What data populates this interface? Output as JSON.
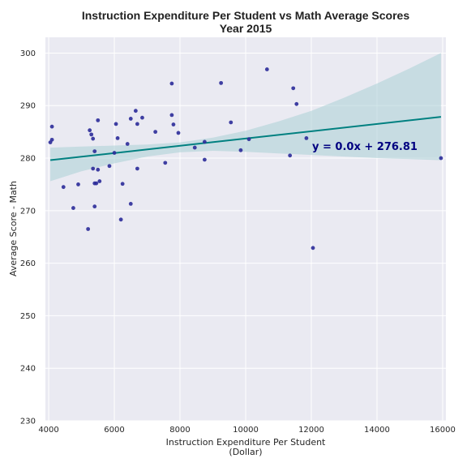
{
  "chart_data": {
    "type": "scatter",
    "title_line1": "Instruction Expenditure Per Student vs Math Average Scores",
    "title_line2": "Year 2015",
    "xlabel_line1": "Instruction Expenditure Per Student",
    "xlabel_line2": "(Dollar)",
    "ylabel": "Average Score - Math",
    "xlim": [
      3900,
      16100
    ],
    "ylim": [
      230,
      303
    ],
    "xticks": [
      "4000",
      "6000",
      "8000",
      "10000",
      "12000",
      "14000",
      "16000"
    ],
    "yticks": [
      "230",
      "240",
      "250",
      "260",
      "270",
      "280",
      "290",
      "300"
    ],
    "grid": true,
    "background": "#eaeaf2",
    "point_color": "#2b2b99",
    "line_color": "#008080",
    "band_color": "#a9cfd6",
    "equation_color": "#000080",
    "equation": "y = 0.0x + 276.81",
    "regression": {
      "slope": 0.000692,
      "intercept": 276.81
    },
    "confidence_band": {
      "x": [
        4050,
        5000,
        6000,
        7000,
        8000,
        9000,
        10000,
        11000,
        12000,
        13000,
        14000,
        15000,
        15950
      ],
      "lower": [
        275.6,
        277.5,
        279.0,
        280.3,
        281.1,
        281.4,
        281.2,
        280.9,
        280.6,
        280.3,
        280.0,
        279.8,
        279.6
      ],
      "upper": [
        282.0,
        282.2,
        282.4,
        282.6,
        283.0,
        283.9,
        285.2,
        287.0,
        289.0,
        291.5,
        294.2,
        297.1,
        300.0
      ]
    },
    "points": [
      {
        "x": 4050,
        "y": 283.0
      },
      {
        "x": 4100,
        "y": 286.0
      },
      {
        "x": 4100,
        "y": 283.5
      },
      {
        "x": 4450,
        "y": 274.5
      },
      {
        "x": 4750,
        "y": 270.5
      },
      {
        "x": 4900,
        "y": 275.0
      },
      {
        "x": 5200,
        "y": 266.5
      },
      {
        "x": 5250,
        "y": 285.3
      },
      {
        "x": 5300,
        "y": 284.5
      },
      {
        "x": 5350,
        "y": 283.7
      },
      {
        "x": 5350,
        "y": 278.0
      },
      {
        "x": 5400,
        "y": 281.3
      },
      {
        "x": 5400,
        "y": 275.2
      },
      {
        "x": 5400,
        "y": 270.8
      },
      {
        "x": 5450,
        "y": 275.2
      },
      {
        "x": 5500,
        "y": 287.2
      },
      {
        "x": 5500,
        "y": 277.8
      },
      {
        "x": 5550,
        "y": 275.6
      },
      {
        "x": 5850,
        "y": 278.5
      },
      {
        "x": 6000,
        "y": 281.0
      },
      {
        "x": 6050,
        "y": 286.5
      },
      {
        "x": 6100,
        "y": 283.8
      },
      {
        "x": 6200,
        "y": 268.3
      },
      {
        "x": 6250,
        "y": 275.1
      },
      {
        "x": 6400,
        "y": 282.7
      },
      {
        "x": 6500,
        "y": 287.5
      },
      {
        "x": 6500,
        "y": 271.3
      },
      {
        "x": 6650,
        "y": 289.0
      },
      {
        "x": 6700,
        "y": 286.5
      },
      {
        "x": 6700,
        "y": 278.0
      },
      {
        "x": 6850,
        "y": 287.7
      },
      {
        "x": 7250,
        "y": 285.0
      },
      {
        "x": 7550,
        "y": 279.1
      },
      {
        "x": 7750,
        "y": 294.2
      },
      {
        "x": 7750,
        "y": 288.2
      },
      {
        "x": 7800,
        "y": 286.4
      },
      {
        "x": 7950,
        "y": 284.8
      },
      {
        "x": 8450,
        "y": 282.0
      },
      {
        "x": 8750,
        "y": 283.1
      },
      {
        "x": 8750,
        "y": 279.7
      },
      {
        "x": 9250,
        "y": 294.3
      },
      {
        "x": 9550,
        "y": 286.8
      },
      {
        "x": 9850,
        "y": 281.5
      },
      {
        "x": 10100,
        "y": 283.6
      },
      {
        "x": 10650,
        "y": 296.9
      },
      {
        "x": 11350,
        "y": 280.5
      },
      {
        "x": 11450,
        "y": 293.3
      },
      {
        "x": 11550,
        "y": 290.3
      },
      {
        "x": 11850,
        "y": 283.8
      },
      {
        "x": 12050,
        "y": 262.9
      },
      {
        "x": 15950,
        "y": 280.0
      }
    ]
  }
}
